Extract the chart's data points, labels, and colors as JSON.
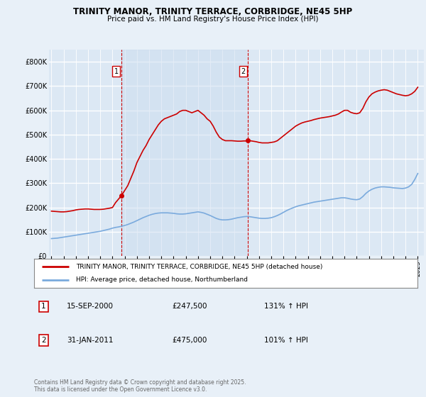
{
  "title": "TRINITY MANOR, TRINITY TERRACE, CORBRIDGE, NE45 5HP",
  "subtitle": "Price paid vs. HM Land Registry's House Price Index (HPI)",
  "bg_color": "#e8f0f8",
  "plot_bg_color": "#dce8f4",
  "highlight_color": "#ccddf0",
  "red_line_color": "#cc0000",
  "blue_line_color": "#7aaadd",
  "vline_color": "#cc0000",
  "grid_color": "#ffffff",
  "annotation1": {
    "label": "1",
    "date_x": 2000.71,
    "price": 247500,
    "text": "15-SEP-2000",
    "amount": "£247,500",
    "hpi": "131% ↑ HPI"
  },
  "annotation2": {
    "label": "2",
    "date_x": 2011.08,
    "price": 475000,
    "text": "31-JAN-2011",
    "amount": "£475,000",
    "hpi": "101% ↑ HPI"
  },
  "legend_red": "TRINITY MANOR, TRINITY TERRACE, CORBRIDGE, NE45 5HP (detached house)",
  "legend_blue": "HPI: Average price, detached house, Northumberland",
  "footer": "Contains HM Land Registry data © Crown copyright and database right 2025.\nThis data is licensed under the Open Government Licence v3.0.",
  "ylim": [
    0,
    850000
  ],
  "yticks": [
    0,
    100000,
    200000,
    300000,
    400000,
    500000,
    600000,
    700000,
    800000
  ],
  "xmin": 1994.8,
  "xmax": 2025.5,
  "red_x": [
    1995.0,
    1995.25,
    1995.5,
    1995.75,
    1996.0,
    1996.25,
    1996.5,
    1996.75,
    1997.0,
    1997.25,
    1997.5,
    1997.75,
    1998.0,
    1998.25,
    1998.5,
    1998.75,
    1999.0,
    1999.25,
    1999.5,
    1999.75,
    2000.0,
    2000.25,
    2000.71,
    2001.0,
    2001.25,
    2001.5,
    2001.75,
    2002.0,
    2002.25,
    2002.5,
    2002.75,
    2003.0,
    2003.25,
    2003.5,
    2003.75,
    2004.0,
    2004.25,
    2004.5,
    2004.75,
    2005.0,
    2005.25,
    2005.5,
    2005.75,
    2006.0,
    2006.25,
    2006.5,
    2006.75,
    2007.0,
    2007.25,
    2007.5,
    2007.75,
    2008.0,
    2008.25,
    2008.5,
    2008.75,
    2009.0,
    2009.25,
    2009.5,
    2009.75,
    2010.0,
    2010.25,
    2010.5,
    2010.75,
    2011.08,
    2011.25,
    2011.5,
    2011.75,
    2012.0,
    2012.25,
    2012.5,
    2012.75,
    2013.0,
    2013.25,
    2013.5,
    2013.75,
    2014.0,
    2014.25,
    2014.5,
    2014.75,
    2015.0,
    2015.25,
    2015.5,
    2015.75,
    2016.0,
    2016.25,
    2016.5,
    2016.75,
    2017.0,
    2017.25,
    2017.5,
    2017.75,
    2018.0,
    2018.25,
    2018.5,
    2018.75,
    2019.0,
    2019.25,
    2019.5,
    2019.75,
    2020.0,
    2020.25,
    2020.5,
    2020.75,
    2021.0,
    2021.25,
    2021.5,
    2021.75,
    2022.0,
    2022.25,
    2022.5,
    2022.75,
    2023.0,
    2023.25,
    2023.5,
    2023.75,
    2024.0,
    2024.25,
    2024.5,
    2024.75,
    2025.0
  ],
  "red_y": [
    185000,
    184000,
    183000,
    182000,
    182000,
    183000,
    185000,
    187000,
    190000,
    192000,
    193000,
    194000,
    194000,
    193000,
    192000,
    192000,
    192000,
    193000,
    195000,
    197000,
    200000,
    220000,
    247500,
    270000,
    290000,
    320000,
    350000,
    385000,
    410000,
    435000,
    455000,
    480000,
    500000,
    520000,
    540000,
    555000,
    565000,
    570000,
    575000,
    580000,
    585000,
    595000,
    600000,
    600000,
    595000,
    590000,
    595000,
    600000,
    590000,
    580000,
    565000,
    555000,
    535000,
    510000,
    490000,
    480000,
    475000,
    475000,
    475000,
    474000,
    473000,
    473000,
    474000,
    474000,
    475000,
    473000,
    471000,
    468000,
    466000,
    466000,
    466000,
    468000,
    470000,
    475000,
    485000,
    495000,
    505000,
    515000,
    525000,
    535000,
    542000,
    548000,
    552000,
    555000,
    558000,
    562000,
    565000,
    568000,
    570000,
    572000,
    574000,
    577000,
    580000,
    585000,
    593000,
    600000,
    600000,
    592000,
    588000,
    586000,
    590000,
    608000,
    635000,
    655000,
    668000,
    675000,
    680000,
    683000,
    685000,
    683000,
    678000,
    673000,
    668000,
    665000,
    662000,
    660000,
    662000,
    668000,
    678000,
    695000
  ],
  "blue_x": [
    1995.0,
    1995.25,
    1995.5,
    1995.75,
    1996.0,
    1996.25,
    1996.5,
    1996.75,
    1997.0,
    1997.25,
    1997.5,
    1997.75,
    1998.0,
    1998.25,
    1998.5,
    1998.75,
    1999.0,
    1999.25,
    1999.5,
    1999.75,
    2000.0,
    2000.25,
    2000.5,
    2000.75,
    2001.0,
    2001.25,
    2001.5,
    2001.75,
    2002.0,
    2002.25,
    2002.5,
    2002.75,
    2003.0,
    2003.25,
    2003.5,
    2003.75,
    2004.0,
    2004.25,
    2004.5,
    2004.75,
    2005.0,
    2005.25,
    2005.5,
    2005.75,
    2006.0,
    2006.25,
    2006.5,
    2006.75,
    2007.0,
    2007.25,
    2007.5,
    2007.75,
    2008.0,
    2008.25,
    2008.5,
    2008.75,
    2009.0,
    2009.25,
    2009.5,
    2009.75,
    2010.0,
    2010.25,
    2010.5,
    2010.75,
    2011.0,
    2011.25,
    2011.5,
    2011.75,
    2012.0,
    2012.25,
    2012.5,
    2012.75,
    2013.0,
    2013.25,
    2013.5,
    2013.75,
    2014.0,
    2014.25,
    2014.5,
    2014.75,
    2015.0,
    2015.25,
    2015.5,
    2015.75,
    2016.0,
    2016.25,
    2016.5,
    2016.75,
    2017.0,
    2017.25,
    2017.5,
    2017.75,
    2018.0,
    2018.25,
    2018.5,
    2018.75,
    2019.0,
    2019.25,
    2019.5,
    2019.75,
    2020.0,
    2020.25,
    2020.5,
    2020.75,
    2021.0,
    2021.25,
    2021.5,
    2021.75,
    2022.0,
    2022.25,
    2022.5,
    2022.75,
    2023.0,
    2023.25,
    2023.5,
    2023.75,
    2024.0,
    2024.25,
    2024.5,
    2024.75,
    2025.0
  ],
  "blue_y": [
    72000,
    73000,
    74000,
    76000,
    78000,
    80000,
    82000,
    84000,
    86000,
    88000,
    90000,
    92000,
    94000,
    96000,
    98000,
    100000,
    102000,
    105000,
    108000,
    111000,
    115000,
    118000,
    120000,
    123000,
    126000,
    130000,
    135000,
    140000,
    146000,
    152000,
    158000,
    163000,
    168000,
    172000,
    175000,
    177000,
    178000,
    178000,
    178000,
    177000,
    176000,
    174000,
    173000,
    173000,
    174000,
    176000,
    178000,
    180000,
    182000,
    180000,
    177000,
    172000,
    167000,
    161000,
    155000,
    151000,
    149000,
    149000,
    150000,
    152000,
    155000,
    158000,
    160000,
    162000,
    163000,
    162000,
    160000,
    158000,
    156000,
    155000,
    155000,
    156000,
    158000,
    162000,
    167000,
    173000,
    180000,
    187000,
    193000,
    198000,
    203000,
    207000,
    210000,
    213000,
    216000,
    219000,
    222000,
    224000,
    226000,
    228000,
    230000,
    232000,
    234000,
    236000,
    238000,
    240000,
    240000,
    238000,
    235000,
    233000,
    232000,
    235000,
    245000,
    258000,
    268000,
    275000,
    280000,
    283000,
    285000,
    285000,
    284000,
    283000,
    281000,
    280000,
    279000,
    278000,
    280000,
    285000,
    295000,
    315000,
    340000
  ],
  "xtick_years": [
    1995,
    1996,
    1997,
    1998,
    1999,
    2000,
    2001,
    2002,
    2003,
    2004,
    2005,
    2006,
    2007,
    2008,
    2009,
    2010,
    2011,
    2012,
    2013,
    2014,
    2015,
    2016,
    2017,
    2018,
    2019,
    2020,
    2021,
    2022,
    2023,
    2024,
    2025
  ]
}
